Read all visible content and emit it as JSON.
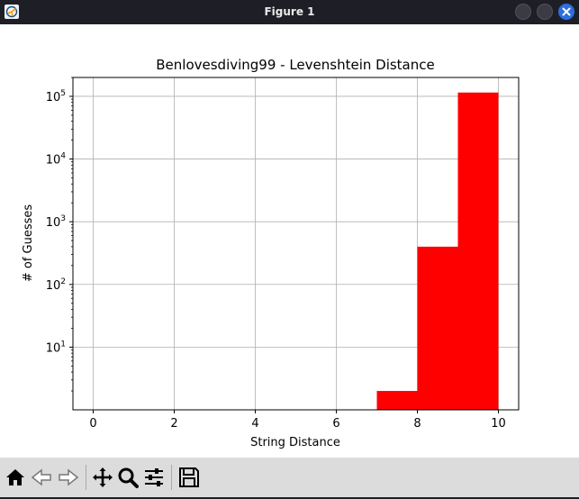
{
  "window": {
    "title": "Figure 1",
    "app_icon": "matplotlib-figure-icon",
    "controls": [
      "minimize-icon",
      "maximize-icon",
      "close-icon"
    ]
  },
  "toolbar": {
    "buttons": [
      "home-icon",
      "back-icon",
      "forward-icon",
      "pan-icon",
      "zoom-icon",
      "configure-subplots-icon",
      "save-icon"
    ]
  },
  "chart_data": {
    "type": "bar",
    "title": "Benlovesdiving99 - Levenshtein Distance",
    "xlabel": "String Distance",
    "ylabel": "# of Guesses",
    "xlim": [
      -0.5,
      10.5
    ],
    "ylim": [
      1,
      200000
    ],
    "yscale": "log",
    "grid": true,
    "bar_color": "#ff0000",
    "x_ticks": [
      0,
      2,
      4,
      6,
      8,
      10
    ],
    "y_ticks": [
      10,
      100,
      1000,
      10000,
      100000
    ],
    "y_tick_labels": [
      {
        "base": "10",
        "exp": "1"
      },
      {
        "base": "10",
        "exp": "2"
      },
      {
        "base": "10",
        "exp": "3"
      },
      {
        "base": "10",
        "exp": "4"
      },
      {
        "base": "10",
        "exp": "5"
      }
    ],
    "bins": [
      {
        "start": 7,
        "end": 8,
        "count": 2
      },
      {
        "start": 8,
        "end": 9,
        "count": 400
      },
      {
        "start": 9,
        "end": 10,
        "count": 115000
      }
    ]
  }
}
